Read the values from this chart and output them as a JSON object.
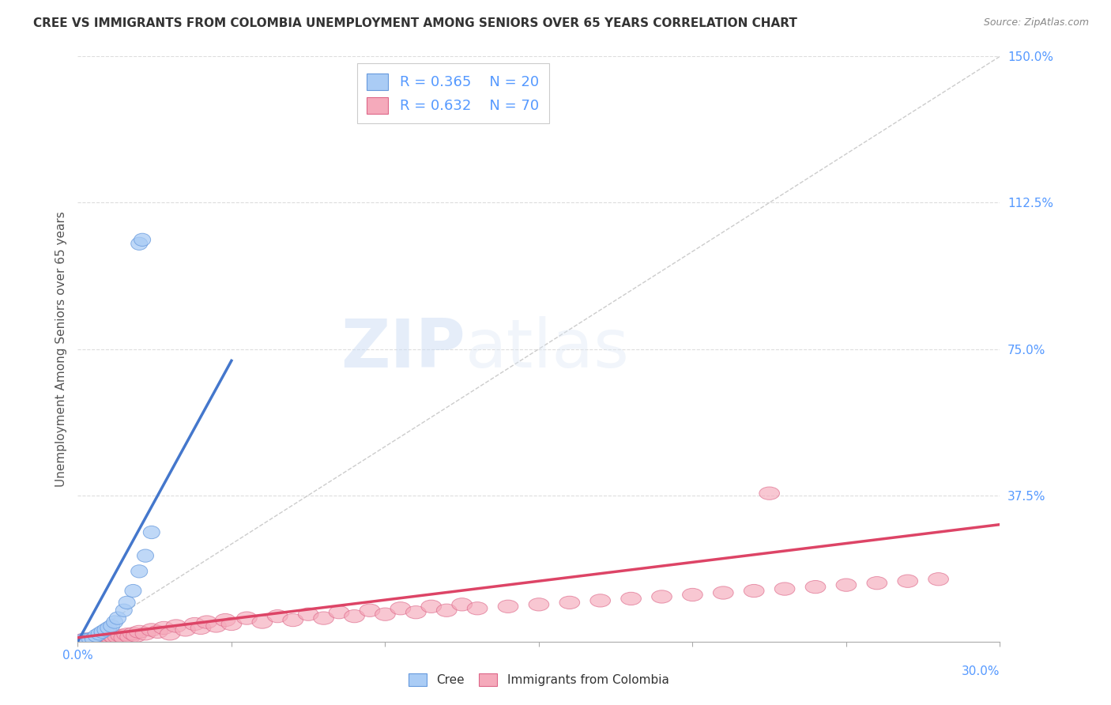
{
  "title": "CREE VS IMMIGRANTS FROM COLOMBIA UNEMPLOYMENT AMONG SENIORS OVER 65 YEARS CORRELATION CHART",
  "source": "Source: ZipAtlas.com",
  "ylabel": "Unemployment Among Seniors over 65 years",
  "right_yticklabels": [
    "37.5%",
    "75.0%",
    "112.5%",
    "150.0%"
  ],
  "right_ytick_vals": [
    0.375,
    0.75,
    1.125,
    1.5
  ],
  "right_ytick_color": "#5599ff",
  "title_color": "#333333",
  "background_color": "#ffffff",
  "watermark_zip": "ZIP",
  "watermark_atlas": "atlas",
  "cree_color": "#aaccf5",
  "cree_edge_color": "#6699dd",
  "colombia_color": "#f5aabb",
  "colombia_edge_color": "#dd6688",
  "cree_line_color": "#4477cc",
  "colombia_line_color": "#dd4466",
  "diagonal_color": "#cccccc",
  "legend_R_cree": "R = 0.365",
  "legend_N_cree": "N = 20",
  "legend_R_colombia": "R = 0.632",
  "legend_N_colombia": "N = 70",
  "xmin": 0.0,
  "xmax": 0.3,
  "ymin": 0.0,
  "ymax": 1.5,
  "cree_x": [
    0.002,
    0.003,
    0.004,
    0.005,
    0.006,
    0.007,
    0.008,
    0.009,
    0.01,
    0.011,
    0.012,
    0.013,
    0.015,
    0.016,
    0.018,
    0.02,
    0.022,
    0.024,
    0.02,
    0.021
  ],
  "cree_y": [
    0.005,
    0.005,
    0.006,
    0.007,
    0.015,
    0.02,
    0.025,
    0.03,
    0.035,
    0.04,
    0.05,
    0.06,
    0.08,
    0.1,
    0.13,
    0.18,
    0.22,
    0.28,
    1.02,
    1.03
  ],
  "colombia_x": [
    0.002,
    0.003,
    0.004,
    0.005,
    0.006,
    0.006,
    0.007,
    0.007,
    0.008,
    0.008,
    0.009,
    0.009,
    0.01,
    0.01,
    0.011,
    0.011,
    0.012,
    0.013,
    0.014,
    0.015,
    0.016,
    0.017,
    0.018,
    0.019,
    0.02,
    0.022,
    0.024,
    0.026,
    0.028,
    0.03,
    0.032,
    0.035,
    0.038,
    0.04,
    0.042,
    0.045,
    0.048,
    0.05,
    0.055,
    0.06,
    0.065,
    0.07,
    0.075,
    0.08,
    0.085,
    0.09,
    0.095,
    0.1,
    0.105,
    0.11,
    0.115,
    0.12,
    0.125,
    0.13,
    0.14,
    0.15,
    0.16,
    0.17,
    0.18,
    0.19,
    0.2,
    0.21,
    0.22,
    0.225,
    0.23,
    0.24,
    0.25,
    0.26,
    0.27,
    0.28
  ],
  "colombia_y": [
    0.005,
    0.005,
    0.006,
    0.006,
    0.005,
    0.007,
    0.006,
    0.008,
    0.005,
    0.009,
    0.007,
    0.01,
    0.006,
    0.012,
    0.008,
    0.015,
    0.01,
    0.012,
    0.015,
    0.01,
    0.018,
    0.012,
    0.02,
    0.015,
    0.025,
    0.02,
    0.03,
    0.025,
    0.035,
    0.02,
    0.04,
    0.03,
    0.045,
    0.035,
    0.05,
    0.04,
    0.055,
    0.045,
    0.06,
    0.05,
    0.065,
    0.055,
    0.07,
    0.06,
    0.075,
    0.065,
    0.08,
    0.07,
    0.085,
    0.075,
    0.09,
    0.08,
    0.095,
    0.085,
    0.09,
    0.095,
    0.1,
    0.105,
    0.11,
    0.115,
    0.12,
    0.125,
    0.13,
    0.38,
    0.135,
    0.14,
    0.145,
    0.15,
    0.155,
    0.16
  ],
  "cree_line_x": [
    0.0,
    0.05
  ],
  "cree_line_y": [
    0.0,
    0.72
  ],
  "colombia_line_x": [
    0.0,
    0.3
  ],
  "colombia_line_y": [
    0.01,
    0.3
  ]
}
